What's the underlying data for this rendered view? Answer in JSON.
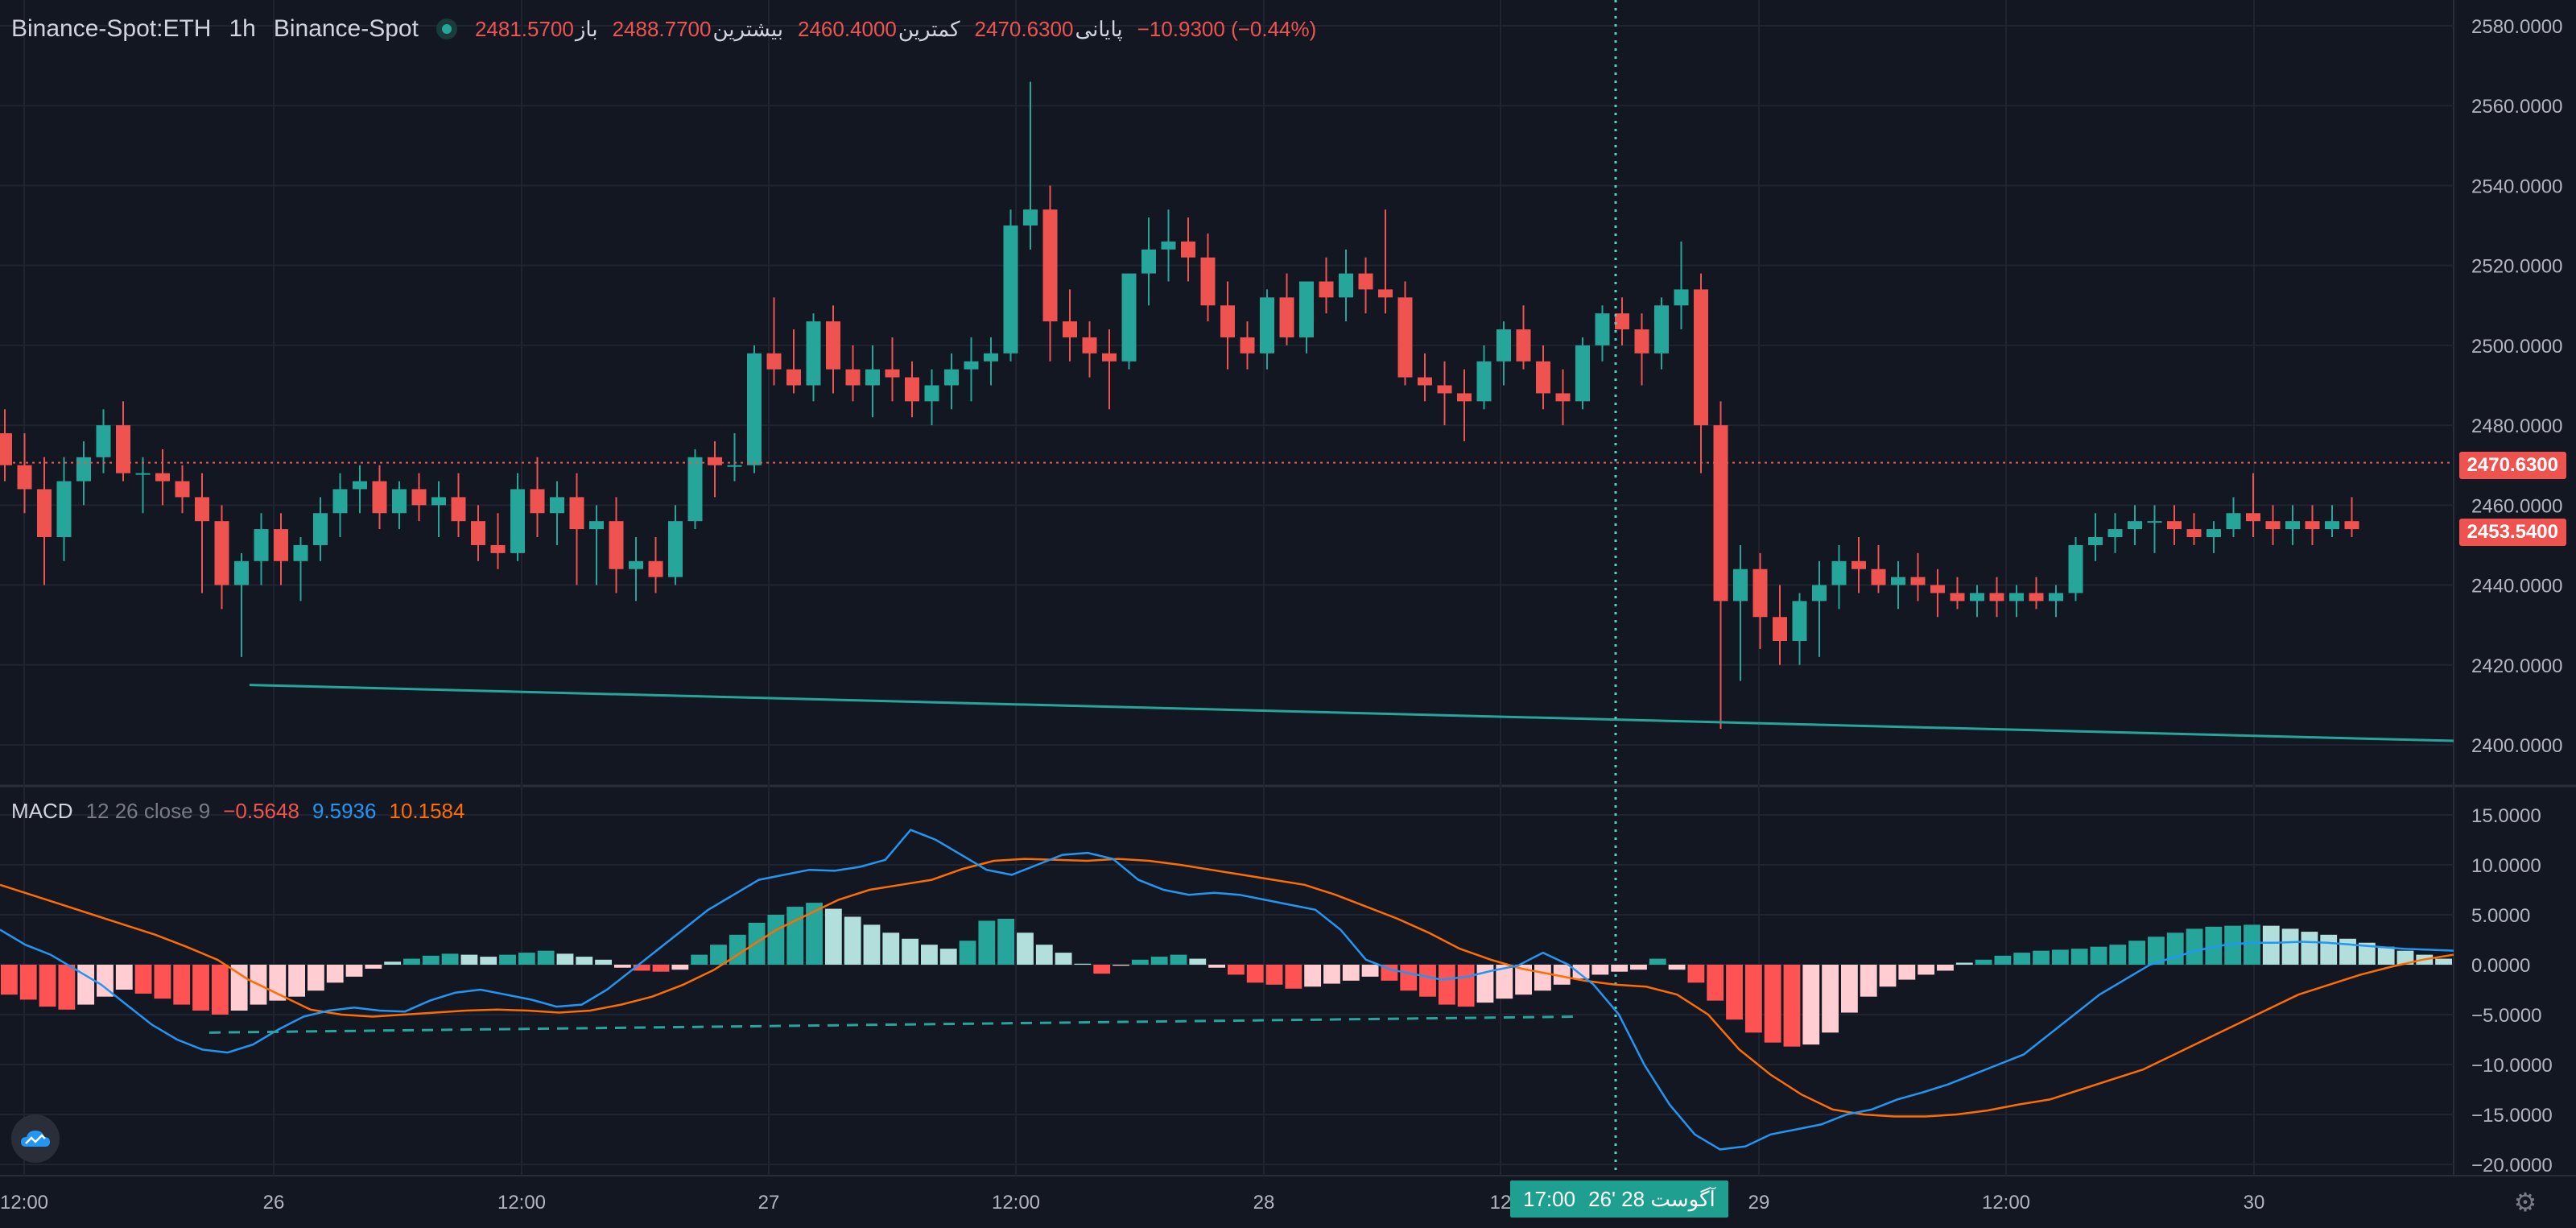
{
  "header": {
    "symbol": "Binance-Spot:ETH",
    "interval": "1h",
    "exchange": "Binance-Spot",
    "ohlc": [
      {
        "label": "باز",
        "value": "2481.5700"
      },
      {
        "label": "بیشترین",
        "value": "2488.7700"
      },
      {
        "label": "کمترین",
        "value": "2460.4000"
      },
      {
        "label": "پایانی",
        "value": "2470.6300"
      }
    ],
    "change": "−10.9300 (−0.44%)"
  },
  "price_axis": {
    "ticks": [
      "2580.0000",
      "2560.0000",
      "2540.0000",
      "2520.0000",
      "2500.0000",
      "2480.0000",
      "2460.0000",
      "2440.0000",
      "2420.0000",
      "2400.0000"
    ],
    "last_price_tag": "2470.6300",
    "cursor_price_tag": "2453.5400"
  },
  "macd": {
    "name": "MACD",
    "params": "12 26 close 9",
    "hist_value": "−0.5648",
    "macd_value": "9.5936",
    "signal_value": "10.1584",
    "ticks": [
      "15.0000",
      "10.0000",
      "5.0000",
      "0.0000",
      "−5.0000",
      "−10.0000",
      "−15.0000",
      "−20.0000"
    ]
  },
  "time_axis": {
    "labels": [
      "12:00",
      "26",
      "12:00",
      "27",
      "12:00",
      "28",
      "12",
      "29",
      "12:00",
      "30"
    ],
    "cursor_label_date": "26' 28 آگوست",
    "cursor_label_time": "17:00"
  },
  "colors": {
    "background": "#131722",
    "up": "#26a69a",
    "down": "#ef5350",
    "macd_line": "#2196f3",
    "signal_line": "#ff6d00",
    "grid": "#1f2430",
    "trendline": "#26a69a"
  },
  "icons": {
    "logo": "tradingview-cloud-icon",
    "settings": "gear-icon"
  },
  "chart_data": [
    {
      "type": "candlestick",
      "title": "Binance-Spot:ETH 1h",
      "ylim": [
        2395,
        2585
      ],
      "ohlc": [
        [
          2478,
          2484,
          2466,
          2470
        ],
        [
          2470,
          2478,
          2458,
          2464
        ],
        [
          2464,
          2472,
          2440,
          2452
        ],
        [
          2452,
          2472,
          2446,
          2466
        ],
        [
          2466,
          2476,
          2460,
          2472
        ],
        [
          2472,
          2484,
          2468,
          2480
        ],
        [
          2480,
          2486,
          2466,
          2468
        ],
        [
          2468,
          2472,
          2458,
          2468
        ],
        [
          2468,
          2474,
          2460,
          2466
        ],
        [
          2466,
          2470,
          2458,
          2462
        ],
        [
          2462,
          2468,
          2438,
          2456
        ],
        [
          2456,
          2460,
          2434,
          2440
        ],
        [
          2440,
          2448,
          2422,
          2446
        ],
        [
          2446,
          2458,
          2440,
          2454
        ],
        [
          2454,
          2458,
          2440,
          2446
        ],
        [
          2446,
          2452,
          2436,
          2450
        ],
        [
          2450,
          2462,
          2446,
          2458
        ],
        [
          2458,
          2468,
          2452,
          2464
        ],
        [
          2464,
          2470,
          2458,
          2466
        ],
        [
          2466,
          2470,
          2454,
          2458
        ],
        [
          2458,
          2466,
          2454,
          2464
        ],
        [
          2464,
          2468,
          2456,
          2460
        ],
        [
          2460,
          2466,
          2452,
          2462
        ],
        [
          2462,
          2468,
          2452,
          2456
        ],
        [
          2456,
          2460,
          2446,
          2450
        ],
        [
          2450,
          2458,
          2444,
          2448
        ],
        [
          2448,
          2468,
          2446,
          2464
        ],
        [
          2464,
          2472,
          2452,
          2458
        ],
        [
          2458,
          2466,
          2450,
          2462
        ],
        [
          2462,
          2468,
          2440,
          2454
        ],
        [
          2454,
          2460,
          2440,
          2456
        ],
        [
          2456,
          2462,
          2438,
          2444
        ],
        [
          2444,
          2452,
          2436,
          2446
        ],
        [
          2446,
          2452,
          2438,
          2442
        ],
        [
          2442,
          2460,
          2440,
          2456
        ],
        [
          2456,
          2474,
          2454,
          2472
        ],
        [
          2472,
          2476,
          2462,
          2470
        ],
        [
          2470,
          2478,
          2466,
          2470
        ],
        [
          2470,
          2500,
          2468,
          2498
        ],
        [
          2498,
          2512,
          2490,
          2494
        ],
        [
          2494,
          2504,
          2488,
          2490
        ],
        [
          2490,
          2508,
          2486,
          2506
        ],
        [
          2506,
          2510,
          2488,
          2494
        ],
        [
          2494,
          2500,
          2486,
          2490
        ],
        [
          2490,
          2500,
          2482,
          2494
        ],
        [
          2494,
          2502,
          2486,
          2492
        ],
        [
          2492,
          2496,
          2482,
          2486
        ],
        [
          2486,
          2494,
          2480,
          2490
        ],
        [
          2490,
          2498,
          2484,
          2494
        ],
        [
          2494,
          2502,
          2486,
          2496
        ],
        [
          2496,
          2502,
          2490,
          2498
        ],
        [
          2498,
          2534,
          2496,
          2530
        ],
        [
          2530,
          2566,
          2524,
          2534
        ],
        [
          2534,
          2540,
          2496,
          2506
        ],
        [
          2506,
          2514,
          2496,
          2502
        ],
        [
          2502,
          2506,
          2492,
          2498
        ],
        [
          2498,
          2504,
          2484,
          2496
        ],
        [
          2496,
          2518,
          2494,
          2518
        ],
        [
          2518,
          2532,
          2510,
          2524
        ],
        [
          2524,
          2534,
          2516,
          2526
        ],
        [
          2526,
          2532,
          2516,
          2522
        ],
        [
          2522,
          2528,
          2506,
          2510
        ],
        [
          2510,
          2516,
          2494,
          2502
        ],
        [
          2502,
          2506,
          2494,
          2498
        ],
        [
          2498,
          2514,
          2494,
          2512
        ],
        [
          2512,
          2518,
          2500,
          2502
        ],
        [
          2502,
          2516,
          2498,
          2516
        ],
        [
          2516,
          2522,
          2508,
          2512
        ],
        [
          2512,
          2524,
          2506,
          2518
        ],
        [
          2518,
          2522,
          2508,
          2514
        ],
        [
          2514,
          2534,
          2508,
          2512
        ],
        [
          2512,
          2516,
          2490,
          2492
        ],
        [
          2492,
          2498,
          2486,
          2490
        ],
        [
          2490,
          2496,
          2480,
          2488
        ],
        [
          2488,
          2494,
          2476,
          2486
        ],
        [
          2486,
          2500,
          2484,
          2496
        ],
        [
          2496,
          2506,
          2490,
          2504
        ],
        [
          2504,
          2510,
          2494,
          2496
        ],
        [
          2496,
          2500,
          2484,
          2488
        ],
        [
          2488,
          2494,
          2480,
          2486
        ],
        [
          2486,
          2502,
          2484,
          2500
        ],
        [
          2500,
          2510,
          2496,
          2508
        ],
        [
          2508,
          2512,
          2500,
          2504
        ],
        [
          2504,
          2508,
          2490,
          2498
        ],
        [
          2498,
          2512,
          2494,
          2510
        ],
        [
          2510,
          2526,
          2504,
          2514
        ],
        [
          2514,
          2518,
          2468,
          2480
        ],
        [
          2480,
          2486,
          2404,
          2436
        ],
        [
          2436,
          2450,
          2416,
          2444
        ],
        [
          2444,
          2448,
          2424,
          2432
        ],
        [
          2432,
          2440,
          2420,
          2426
        ],
        [
          2426,
          2438,
          2420,
          2436
        ],
        [
          2436,
          2446,
          2422,
          2440
        ],
        [
          2440,
          2450,
          2434,
          2446
        ],
        [
          2446,
          2452,
          2438,
          2444
        ],
        [
          2444,
          2450,
          2438,
          2440
        ],
        [
          2440,
          2446,
          2434,
          2442
        ],
        [
          2442,
          2448,
          2436,
          2440
        ],
        [
          2440,
          2444,
          2432,
          2438
        ],
        [
          2438,
          2442,
          2434,
          2436
        ],
        [
          2436,
          2440,
          2432,
          2438
        ],
        [
          2438,
          2442,
          2432,
          2436
        ],
        [
          2436,
          2440,
          2432,
          2438
        ],
        [
          2438,
          2442,
          2434,
          2436
        ],
        [
          2436,
          2440,
          2432,
          2438
        ],
        [
          2438,
          2452,
          2436,
          2450
        ],
        [
          2450,
          2458,
          2446,
          2452
        ],
        [
          2452,
          2458,
          2448,
          2454
        ],
        [
          2454,
          2460,
          2450,
          2456
        ],
        [
          2456,
          2460,
          2448,
          2456
        ],
        [
          2456,
          2460,
          2450,
          2454
        ],
        [
          2454,
          2458,
          2450,
          2452
        ],
        [
          2452,
          2456,
          2448,
          2454
        ],
        [
          2454,
          2462,
          2452,
          2458
        ],
        [
          2458,
          2468,
          2452,
          2456
        ],
        [
          2456,
          2460,
          2450,
          2454
        ],
        [
          2454,
          2460,
          2450,
          2456
        ],
        [
          2456,
          2460,
          2450,
          2454
        ],
        [
          2454,
          2460,
          2452,
          2456
        ],
        [
          2456,
          2462,
          2452,
          2454
        ]
      ],
      "trendline": {
        "from": [
          12,
          2415
        ],
        "to": [
          121,
          2401
        ]
      },
      "last_price_line": 2470.63
    },
    {
      "type": "histogram-lines",
      "title": "MACD 12 26 close 9",
      "ylim": [
        -22,
        17
      ],
      "histogram": [
        -3,
        -3.5,
        -4.2,
        -4.5,
        -4,
        -3.2,
        -2.5,
        -2.9,
        -3.4,
        -4,
        -4.6,
        -5,
        -4.6,
        -4,
        -3.6,
        -3.2,
        -2.6,
        -1.8,
        -1.2,
        -0.4,
        0.3,
        0.6,
        0.9,
        1.1,
        1.0,
        0.8,
        1.0,
        1.2,
        1.4,
        1.1,
        0.8,
        0.5,
        -0.3,
        -0.6,
        -0.7,
        -0.5,
        1.0,
        2.0,
        3.0,
        4.2,
        5.0,
        5.8,
        6.2,
        5.6,
        4.8,
        4.0,
        3.2,
        2.6,
        2.0,
        1.6,
        2.4,
        4.4,
        4.6,
        3.2,
        2.0,
        1.2,
        0.1,
        -0.9,
        -0.1,
        0.5,
        0.8,
        1.0,
        0.6,
        -0.3,
        -1.0,
        -1.8,
        -2.0,
        -2.4,
        -2.2,
        -1.9,
        -1.6,
        -1.2,
        -1.6,
        -2.6,
        -3.2,
        -4.0,
        -4.2,
        -3.8,
        -3.4,
        -3.0,
        -2.6,
        -2.0,
        -1.4,
        -1.0,
        -0.7,
        -0.5,
        0.6,
        -0.5,
        -1.8,
        -3.6,
        -5.5,
        -6.8,
        -7.8,
        -8.2,
        -8.0,
        -6.8,
        -4.8,
        -3.2,
        -2.2,
        -1.5,
        -1.0,
        -0.6,
        0.2,
        0.5,
        0.9,
        1.2,
        1.4,
        1.5,
        1.6,
        1.8,
        2.0,
        2.4,
        2.8,
        3.2,
        3.6,
        3.8,
        3.9,
        4.0,
        3.9,
        3.6,
        3.3,
        3.0,
        2.6,
        2.2,
        1.8,
        1.4,
        1.0,
        0.6
      ],
      "macd_line": [
        3.5,
        2,
        1,
        -0.5,
        -2,
        -4,
        -6,
        -7.5,
        -8.5,
        -8.8,
        -8,
        -6.5,
        -5.2,
        -4.6,
        -4.3,
        -4.6,
        -4.7,
        -3.6,
        -2.8,
        -2.5,
        -3,
        -3.5,
        -4.2,
        -4,
        -2.5,
        -0.5,
        1.5,
        3.5,
        5.5,
        7,
        8.5,
        9,
        9.5,
        9.4,
        9.8,
        10.5,
        13.5,
        12.5,
        11,
        9.5,
        9,
        10,
        11,
        11.2,
        10.6,
        8.5,
        7.5,
        7,
        7.2,
        7,
        6.5,
        6,
        5.5,
        3.5,
        0.5,
        -0.5,
        -1,
        -1.5,
        -1.2,
        -0.6,
        -0.1,
        1.2,
        0,
        -2,
        -5,
        -10,
        -14,
        -17,
        -18.5,
        -18.2,
        -17,
        -16.5,
        -16,
        -15,
        -14.5,
        -13.5,
        -12.8,
        -12,
        -11,
        -10,
        -9,
        -7,
        -5,
        -3,
        -1.5,
        0,
        0.8,
        1.5,
        2,
        2.2,
        2.2,
        2.3,
        2.2,
        2.0,
        1.8,
        1.6,
        1.5,
        1.4
      ],
      "signal_line": [
        8,
        7,
        6,
        5,
        4,
        3,
        1.8,
        0.5,
        -1.5,
        -3,
        -4.5,
        -5,
        -5.2,
        -5,
        -4.8,
        -4.6,
        -4.5,
        -4.6,
        -4.8,
        -4.6,
        -4.0,
        -3.2,
        -2,
        -0.5,
        1.5,
        3.5,
        5,
        6.5,
        7.5,
        8,
        8.5,
        9.6,
        10.4,
        10.6,
        10.5,
        10.4,
        10.6,
        10.4,
        10,
        9.5,
        9,
        8.5,
        8,
        7,
        5.8,
        4.6,
        3.2,
        1.6,
        0.5,
        -0.4,
        -1,
        -1.6,
        -2,
        -2.2,
        -3,
        -5,
        -8.5,
        -11,
        -13,
        -14.5,
        -15,
        -15.2,
        -15.2,
        -15,
        -14.6,
        -14,
        -13.5,
        -12.5,
        -11.5,
        -10.5,
        -9,
        -7.5,
        -6,
        -4.5,
        -3,
        -2,
        -1,
        -0.2,
        0.5,
        1
      ]
    }
  ]
}
